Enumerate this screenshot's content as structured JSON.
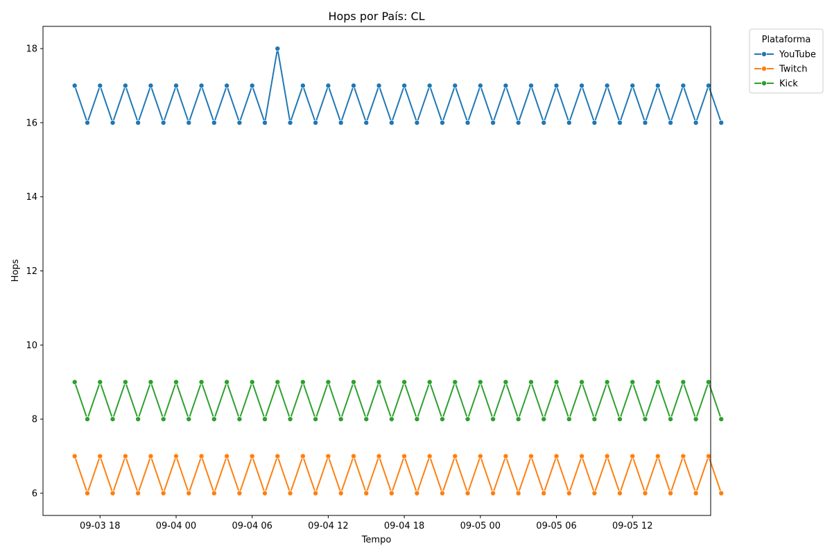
{
  "chart_data": {
    "type": "line",
    "title": "Hops por País: CL",
    "xlabel": "Tempo",
    "ylabel": "Hops",
    "x_start": "2024-09-03 16:00",
    "x_step_hours": 1,
    "xlim": [
      "2024-09-03 13:30",
      "2024-09-05 18:10"
    ],
    "ylim": [
      5.4,
      18.6
    ],
    "x_ticks": [
      {
        "label": "09-03 18",
        "time": "2024-09-03 18:00"
      },
      {
        "label": "09-04 00",
        "time": "2024-09-04 00:00"
      },
      {
        "label": "09-04 06",
        "time": "2024-09-04 06:00"
      },
      {
        "label": "09-04 12",
        "time": "2024-09-04 12:00"
      },
      {
        "label": "09-04 18",
        "time": "2024-09-04 18:00"
      },
      {
        "label": "09-05 00",
        "time": "2024-09-05 00:00"
      },
      {
        "label": "09-05 06",
        "time": "2024-09-05 06:00"
      },
      {
        "label": "09-05 12",
        "time": "2024-09-05 12:00"
      }
    ],
    "y_ticks": [
      6,
      8,
      10,
      12,
      14,
      16,
      18
    ],
    "grid": false,
    "legend": {
      "title": "Plataforma",
      "placement": "outside-top-right"
    },
    "series": [
      {
        "name": "YouTube",
        "color": "#1f77b4",
        "values": [
          17,
          16,
          17,
          16,
          17,
          16,
          17,
          16,
          17,
          16,
          17,
          16,
          17,
          16,
          17,
          16,
          18,
          16,
          17,
          16,
          17,
          16,
          17,
          16,
          17,
          16,
          17,
          16,
          17,
          16,
          17,
          16,
          17,
          16,
          17,
          16,
          17,
          16,
          17,
          16,
          17,
          16,
          17,
          16,
          17,
          16,
          17,
          16,
          17,
          16,
          17,
          16
        ]
      },
      {
        "name": "Twitch",
        "color": "#ff7f0e",
        "values": [
          7,
          6,
          7,
          6,
          7,
          6,
          7,
          6,
          7,
          6,
          7,
          6,
          7,
          6,
          7,
          6,
          7,
          6,
          7,
          6,
          7,
          6,
          7,
          6,
          7,
          6,
          7,
          6,
          7,
          6,
          7,
          6,
          7,
          6,
          7,
          6,
          7,
          6,
          7,
          6,
          7,
          6,
          7,
          6,
          7,
          6,
          7,
          6,
          7,
          6,
          7,
          6
        ]
      },
      {
        "name": "Kick",
        "color": "#2ca02c",
        "values": [
          9,
          8,
          9,
          8,
          9,
          8,
          9,
          8,
          9,
          8,
          9,
          8,
          9,
          8,
          9,
          8,
          9,
          8,
          9,
          8,
          9,
          8,
          9,
          8,
          9,
          8,
          9,
          8,
          9,
          8,
          9,
          8,
          9,
          8,
          9,
          8,
          9,
          8,
          9,
          8,
          9,
          8,
          9,
          8,
          9,
          8,
          9,
          8,
          9,
          8,
          9,
          8
        ]
      }
    ]
  }
}
